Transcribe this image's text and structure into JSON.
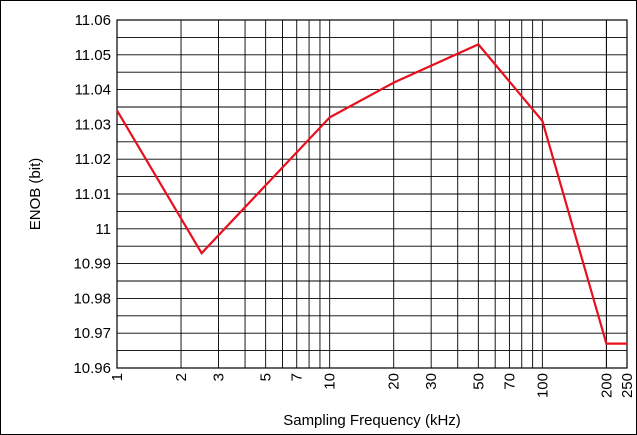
{
  "chart_data": {
    "type": "line",
    "xscale": "log",
    "xlabel": "Sampling Frequency (kHz)",
    "ylabel": "ENOB (bit)",
    "xlim": [
      1,
      250
    ],
    "ylim": [
      10.96,
      11.06
    ],
    "x_ticks": [
      1,
      2,
      3,
      5,
      7,
      10,
      20,
      30,
      50,
      70,
      100,
      200,
      250
    ],
    "x_tick_labels": [
      "1",
      "2",
      "3",
      "5",
      "7",
      "10",
      "20",
      "30",
      "50",
      "70",
      "100",
      "200",
      "250"
    ],
    "y_ticks": [
      10.96,
      10.97,
      10.98,
      10.99,
      11,
      11.01,
      11.02,
      11.03,
      11.04,
      11.05,
      11.06
    ],
    "y_tick_labels": [
      "10.96",
      "10.97",
      "10.98",
      "10.99",
      "11",
      "11.01",
      "11.02",
      "11.03",
      "11.04",
      "11.05",
      "11.06"
    ],
    "grid": true,
    "series": [
      {
        "color": "#e8101e",
        "x": [
          1,
          2.5,
          10,
          20,
          50,
          100,
          200,
          250
        ],
        "y": [
          11.034,
          10.993,
          11.032,
          11.042,
          11.053,
          11.031,
          10.967,
          10.967
        ]
      }
    ]
  }
}
